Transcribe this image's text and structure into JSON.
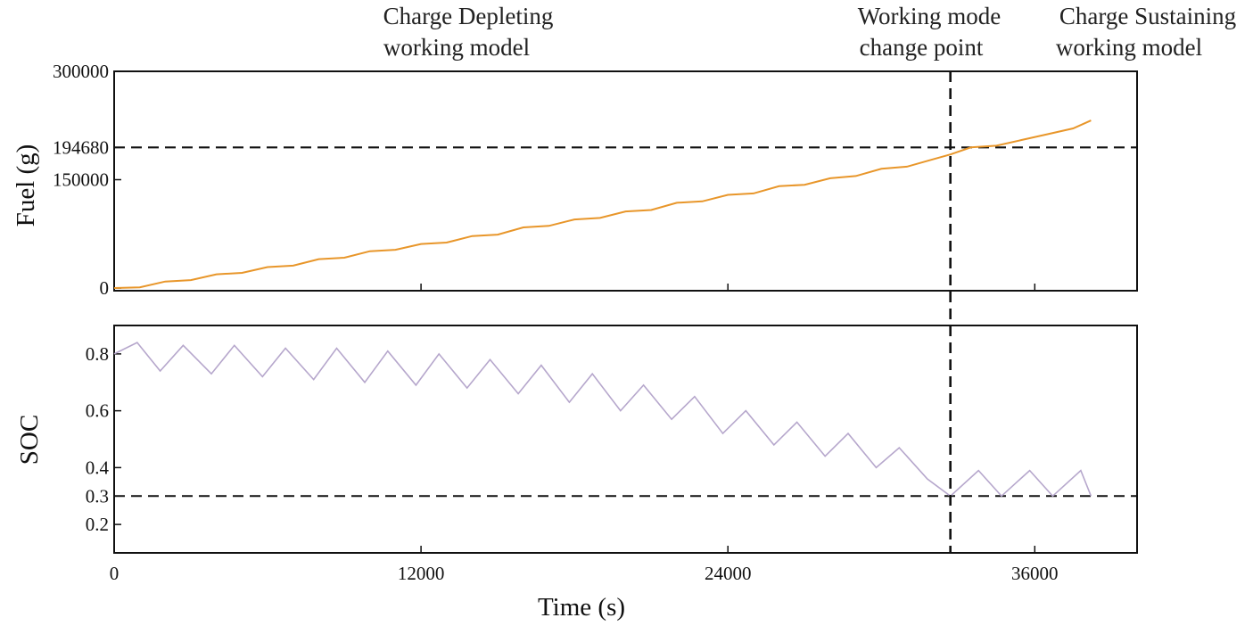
{
  "annotations": {
    "cd_line1": "Charge Depleting",
    "cd_line2": "working model",
    "wm_line1": "Working mode",
    "wm_line2": "change point",
    "cs_line1": "Charge Sustaining",
    "cs_line2": "working model"
  },
  "chart_data": [
    {
      "type": "line",
      "ylabel": "Fuel (g)",
      "xlim": [
        0,
        40000
      ],
      "ylim": [
        0,
        300000
      ],
      "y_ticks": [
        0,
        150000,
        194680,
        300000
      ],
      "y_tick_labels": [
        "0",
        "150000",
        "194680",
        "300000"
      ],
      "x_ticks": [
        0,
        12000,
        24000,
        36000
      ],
      "color": "#E8962A",
      "series": [
        {
          "name": "Fuel",
          "x": [
            0,
            1000,
            2000,
            3000,
            4000,
            5000,
            6000,
            7000,
            8000,
            9000,
            10000,
            11000,
            12000,
            13000,
            14000,
            15000,
            16000,
            17000,
            18000,
            19000,
            20000,
            21000,
            22000,
            23000,
            24000,
            25000,
            26000,
            27000,
            28000,
            29000,
            30000,
            31000,
            32000,
            32700,
            33500,
            34500,
            35500,
            36500,
            37500,
            38200
          ],
          "y": [
            0,
            1000,
            9000,
            11000,
            19000,
            21000,
            29000,
            31000,
            40000,
            42000,
            51000,
            53000,
            61000,
            63000,
            72000,
            74000,
            84000,
            86000,
            95000,
            97000,
            106000,
            108000,
            118000,
            120000,
            129000,
            131000,
            141000,
            143000,
            152000,
            155000,
            165000,
            168000,
            178000,
            185000,
            194680,
            197000,
            205000,
            213000,
            221000,
            232000
          ]
        }
      ],
      "hlines": [
        {
          "y": 194680,
          "label": "194680"
        }
      ],
      "vlines": [
        {
          "x": 32700
        }
      ]
    },
    {
      "type": "line",
      "ylabel": "SOC",
      "xlabel": "Time (s)",
      "xlim": [
        0,
        40000
      ],
      "ylim": [
        0.1,
        0.9
      ],
      "y_ticks": [
        0.2,
        0.3,
        0.4,
        0.6,
        0.8
      ],
      "y_tick_labels": [
        "0.2",
        "0.3",
        "0.4",
        "0.6",
        "0.8"
      ],
      "x_ticks": [
        0,
        12000,
        24000,
        36000
      ],
      "x_tick_labels": [
        "0",
        "12000",
        "24000",
        "36000"
      ],
      "color": "#B6A7CC",
      "series": [
        {
          "name": "SOC",
          "x": [
            0,
            900,
            1800,
            2700,
            3800,
            4700,
            5800,
            6700,
            7800,
            8700,
            9800,
            10700,
            11800,
            12700,
            13800,
            14700,
            15800,
            16700,
            17800,
            18700,
            19800,
            20700,
            21800,
            22700,
            23800,
            24700,
            25800,
            26700,
            27800,
            28700,
            29800,
            30700,
            31800,
            32700,
            33800,
            34700,
            35800,
            36700,
            37800,
            38200
          ],
          "y": [
            0.8,
            0.84,
            0.74,
            0.83,
            0.73,
            0.83,
            0.72,
            0.82,
            0.71,
            0.82,
            0.7,
            0.81,
            0.69,
            0.8,
            0.68,
            0.78,
            0.66,
            0.76,
            0.63,
            0.73,
            0.6,
            0.69,
            0.57,
            0.65,
            0.52,
            0.6,
            0.48,
            0.56,
            0.44,
            0.52,
            0.4,
            0.47,
            0.36,
            0.3,
            0.39,
            0.3,
            0.39,
            0.3,
            0.39,
            0.3
          ]
        }
      ],
      "hlines": [
        {
          "y": 0.3
        }
      ],
      "vlines": [
        {
          "x": 32700
        }
      ]
    }
  ]
}
